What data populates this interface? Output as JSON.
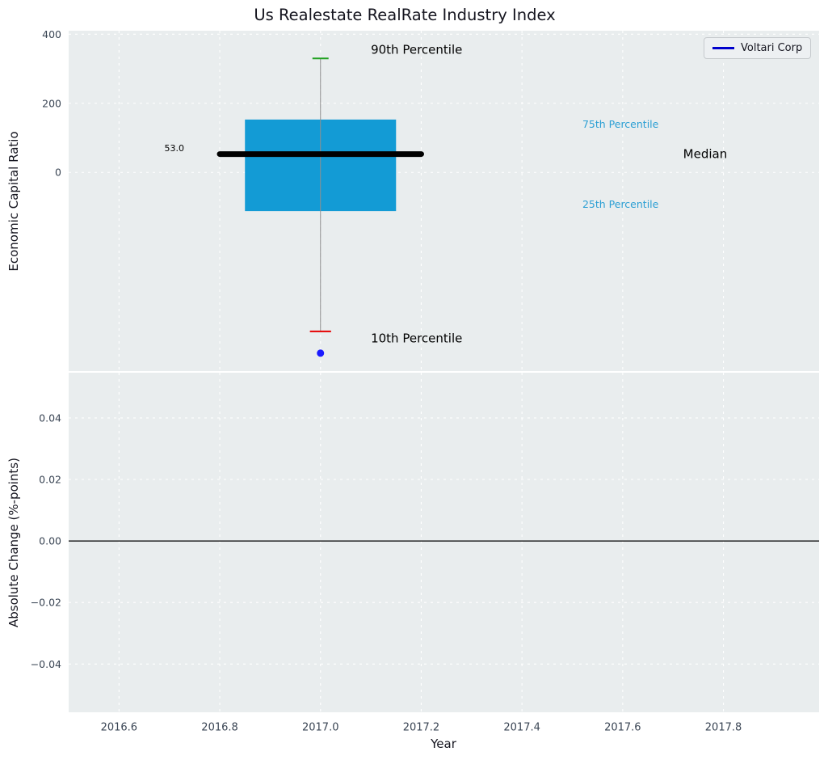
{
  "title": "Us Realestate RealRate Industry Index",
  "legend": {
    "label": "Voltari Corp",
    "line_color": "#0000cc",
    "position": "upper right"
  },
  "colors": {
    "figure_bg": "#ffffff",
    "plot_bg": "#e9edee",
    "grid": "#ffffff",
    "tick_label": "#3a4554",
    "axis_label": "#15151f",
    "box_fill": "#139bd5",
    "median_line": "#000000",
    "whisker": "#909090",
    "cap_90": "#21a121",
    "cap_10": "#e60000",
    "company_dot": "#1a1aff",
    "annotation_accent": "#2b9fd4",
    "zero_line": "#000000"
  },
  "chart_data": [
    {
      "type": "box",
      "title": "Us Realestate RealRate Industry Index",
      "ylabel": "Economic Capital Ratio",
      "xlabel": "",
      "xlim": [
        2016.5,
        2017.99
      ],
      "ylim": [
        -575,
        410
      ],
      "grid": true,
      "yticks": [
        {
          "v": 400,
          "label": "400"
        },
        {
          "v": 200,
          "label": "200"
        },
        {
          "v": 0,
          "label": "0"
        }
      ],
      "xticks": [
        2016.6,
        2016.8,
        2017.0,
        2017.2,
        2017.4,
        2017.6,
        2017.8
      ],
      "box": {
        "x_center": 2017.0,
        "x_left": 2016.85,
        "x_right": 2017.15,
        "p10": -460,
        "q1": -112,
        "median": 53.0,
        "q3": 153,
        "p90": 330,
        "median_line_x": [
          2016.8,
          2017.2
        ],
        "cap90_halfwidth": 0.016,
        "cap10_halfwidth": 0.021
      },
      "company_point": {
        "label": "Voltari Corp",
        "x": 2017.0,
        "y": -523
      },
      "annotations": [
        {
          "text": "90th Percentile",
          "x": 2017.1,
          "y": 355,
          "size": 15,
          "color": "#000000"
        },
        {
          "text": "10th Percentile",
          "x": 2017.1,
          "y": -480,
          "size": 15,
          "color": "#000000"
        },
        {
          "text": "75th Percentile",
          "x": 2017.52,
          "y": 140,
          "size": 12.5,
          "color": "#2b9fd4"
        },
        {
          "text": "25th Percentile",
          "x": 2017.52,
          "y": -92,
          "size": 12.5,
          "color": "#2b9fd4"
        },
        {
          "text": "Median",
          "x": 2017.72,
          "y": 53,
          "size": 15,
          "color": "#000000"
        },
        {
          "text": "53.0",
          "x": 2016.69,
          "y": 70,
          "size": 11,
          "color": "#000000"
        }
      ]
    },
    {
      "type": "line",
      "ylabel": "Absolute Change (%-points)",
      "xlabel": "Year",
      "xlim": [
        2016.5,
        2017.99
      ],
      "ylim": [
        -0.0557,
        0.0547
      ],
      "grid": true,
      "yticks": [
        {
          "v": 0.04,
          "label": "0.04"
        },
        {
          "v": 0.02,
          "label": "0.02"
        },
        {
          "v": 0,
          "label": "0.00"
        },
        {
          "v": -0.02,
          "label": "−0.02"
        },
        {
          "v": -0.04,
          "label": "−0.04"
        }
      ],
      "xticks": [
        2016.6,
        2016.8,
        2017.0,
        2017.2,
        2017.4,
        2017.6,
        2017.8
      ],
      "xticklabels": [
        "2016.6",
        "2016.8",
        "2017.0",
        "2017.2",
        "2017.4",
        "2017.6",
        "2017.8"
      ],
      "zero_line_y": 0.0,
      "series": []
    }
  ]
}
